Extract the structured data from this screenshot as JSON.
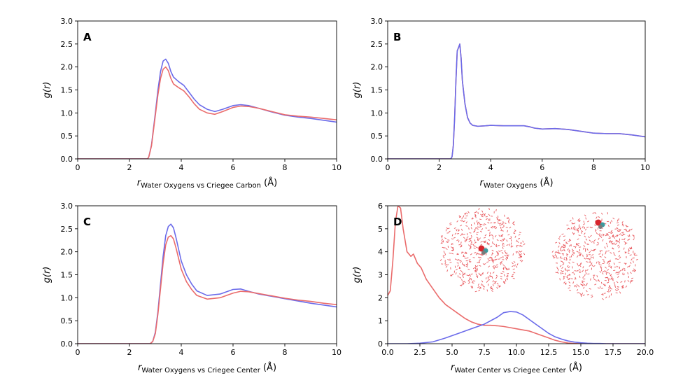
{
  "chart_data": [
    {
      "type": "line",
      "panel_label": "A",
      "xlabel_main": "r",
      "xlabel_sub": "Water Oxygens vs Criegee Carbon",
      "xlabel_unit": "(Å)",
      "ylabel": "g(r)",
      "xlim": [
        0,
        10
      ],
      "ylim": [
        0,
        3.0
      ],
      "xticks": [
        0,
        2,
        4,
        6,
        8,
        10
      ],
      "xtick_labels": [
        "0",
        "2",
        "4",
        "6",
        "8",
        "10"
      ],
      "yticks": [
        0,
        0.5,
        1.0,
        1.5,
        2.0,
        2.5,
        3.0
      ],
      "ytick_labels": [
        "0.0",
        "0.5",
        "1.0",
        "1.5",
        "2.0",
        "2.5",
        "3.0"
      ],
      "series": [
        {
          "name": "blue",
          "color": "#6b6bea",
          "x": [
            0,
            2.7,
            2.75,
            2.85,
            3.0,
            3.1,
            3.2,
            3.3,
            3.4,
            3.5,
            3.6,
            3.7,
            3.9,
            4.1,
            4.3,
            4.5,
            4.7,
            5.0,
            5.3,
            5.6,
            6.0,
            6.3,
            6.6,
            7.0,
            7.5,
            8.0,
            8.5,
            9.0,
            9.5,
            10.0
          ],
          "y": [
            0,
            0,
            0.05,
            0.3,
            1.0,
            1.5,
            1.9,
            2.13,
            2.17,
            2.08,
            1.9,
            1.78,
            1.68,
            1.6,
            1.45,
            1.3,
            1.18,
            1.08,
            1.03,
            1.08,
            1.16,
            1.18,
            1.16,
            1.1,
            1.02,
            0.95,
            0.91,
            0.88,
            0.84,
            0.8
          ]
        },
        {
          "name": "red",
          "color": "#ea6b6b",
          "x": [
            0,
            2.7,
            2.75,
            2.85,
            3.0,
            3.1,
            3.2,
            3.3,
            3.4,
            3.5,
            3.6,
            3.7,
            3.9,
            4.1,
            4.3,
            4.5,
            4.7,
            5.0,
            5.3,
            5.6,
            6.0,
            6.3,
            6.6,
            7.0,
            7.5,
            8.0,
            8.5,
            9.0,
            9.5,
            10.0
          ],
          "y": [
            0,
            0,
            0.05,
            0.28,
            0.95,
            1.4,
            1.75,
            1.95,
            2.0,
            1.92,
            1.75,
            1.63,
            1.55,
            1.48,
            1.35,
            1.2,
            1.08,
            1.0,
            0.97,
            1.03,
            1.12,
            1.15,
            1.14,
            1.1,
            1.03,
            0.96,
            0.93,
            0.91,
            0.88,
            0.85
          ]
        }
      ]
    },
    {
      "type": "line",
      "panel_label": "B",
      "xlabel_main": "r",
      "xlabel_sub": "Water Oxygens",
      "xlabel_unit": "(Å)",
      "ylabel": "g(r)",
      "xlim": [
        0,
        10
      ],
      "ylim": [
        0,
        3.0
      ],
      "xticks": [
        0,
        2,
        4,
        6,
        8,
        10
      ],
      "xtick_labels": [
        "0",
        "2",
        "4",
        "6",
        "8",
        "10"
      ],
      "yticks": [
        0,
        0.5,
        1.0,
        1.5,
        2.0,
        2.5,
        3.0
      ],
      "ytick_labels": [
        "0.0",
        "0.5",
        "1.0",
        "1.5",
        "2.0",
        "2.5",
        "3.0"
      ],
      "series": [
        {
          "name": "red",
          "color": "#ea6b6b",
          "x": [
            0,
            2.45,
            2.5,
            2.55,
            2.6,
            2.65,
            2.7,
            2.75,
            2.8,
            2.85,
            2.9,
            3.0,
            3.1,
            3.2,
            3.3,
            3.5,
            3.8,
            4.0,
            4.5,
            5.0,
            5.3,
            5.5,
            5.7,
            6.0,
            6.5,
            7.0,
            7.5,
            8.0,
            8.5,
            9.0,
            9.5,
            10.0
          ],
          "y": [
            0,
            0,
            0.05,
            0.3,
            0.9,
            1.7,
            2.35,
            2.42,
            2.5,
            2.2,
            1.7,
            1.2,
            0.9,
            0.78,
            0.73,
            0.71,
            0.72,
            0.73,
            0.72,
            0.72,
            0.72,
            0.7,
            0.67,
            0.65,
            0.66,
            0.64,
            0.6,
            0.56,
            0.55,
            0.55,
            0.52,
            0.48
          ]
        },
        {
          "name": "blue",
          "color": "#6b6bea",
          "x": [
            0,
            2.45,
            2.5,
            2.55,
            2.6,
            2.65,
            2.7,
            2.75,
            2.8,
            2.85,
            2.9,
            3.0,
            3.1,
            3.2,
            3.3,
            3.5,
            3.8,
            4.0,
            4.5,
            5.0,
            5.3,
            5.5,
            5.7,
            6.0,
            6.5,
            7.0,
            7.5,
            8.0,
            8.5,
            9.0,
            9.5,
            10.0
          ],
          "y": [
            0,
            0,
            0.05,
            0.3,
            0.9,
            1.7,
            2.35,
            2.42,
            2.5,
            2.2,
            1.7,
            1.2,
            0.9,
            0.78,
            0.73,
            0.71,
            0.72,
            0.73,
            0.72,
            0.72,
            0.72,
            0.7,
            0.67,
            0.65,
            0.66,
            0.64,
            0.6,
            0.56,
            0.55,
            0.55,
            0.52,
            0.48
          ]
        }
      ]
    },
    {
      "type": "line",
      "panel_label": "C",
      "xlabel_main": "r",
      "xlabel_sub": "Water Oxygens vs Criegee Center",
      "xlabel_unit": "(Å)",
      "ylabel": "g(r)",
      "xlim": [
        0,
        10
      ],
      "ylim": [
        0,
        3.0
      ],
      "xticks": [
        0,
        2,
        4,
        6,
        8,
        10
      ],
      "xtick_labels": [
        "0",
        "2",
        "4",
        "6",
        "8",
        "10"
      ],
      "yticks": [
        0,
        0.5,
        1.0,
        1.5,
        2.0,
        2.5,
        3.0
      ],
      "ytick_labels": [
        "0.0",
        "0.5",
        "1.0",
        "1.5",
        "2.0",
        "2.5",
        "3.0"
      ],
      "series": [
        {
          "name": "blue",
          "color": "#6b6bea",
          "x": [
            0,
            2.8,
            2.9,
            3.0,
            3.1,
            3.2,
            3.3,
            3.4,
            3.5,
            3.6,
            3.7,
            3.8,
            3.9,
            4.0,
            4.2,
            4.4,
            4.6,
            5.0,
            5.5,
            6.0,
            6.3,
            6.6,
            7.0,
            7.5,
            8.0,
            8.5,
            9.0,
            9.5,
            10.0
          ],
          "y": [
            0,
            0,
            0.05,
            0.25,
            0.7,
            1.3,
            1.9,
            2.35,
            2.55,
            2.6,
            2.52,
            2.3,
            2.05,
            1.8,
            1.5,
            1.3,
            1.15,
            1.05,
            1.08,
            1.18,
            1.19,
            1.14,
            1.08,
            1.03,
            0.98,
            0.93,
            0.88,
            0.84,
            0.8
          ]
        },
        {
          "name": "red",
          "color": "#ea6b6b",
          "x": [
            0,
            2.8,
            2.9,
            3.0,
            3.1,
            3.2,
            3.3,
            3.4,
            3.5,
            3.6,
            3.7,
            3.8,
            3.9,
            4.0,
            4.2,
            4.4,
            4.6,
            5.0,
            5.5,
            6.0,
            6.3,
            6.6,
            7.0,
            7.5,
            8.0,
            8.5,
            9.0,
            9.5,
            10.0
          ],
          "y": [
            0,
            0,
            0.05,
            0.22,
            0.65,
            1.2,
            1.75,
            2.15,
            2.32,
            2.35,
            2.28,
            2.08,
            1.85,
            1.62,
            1.35,
            1.18,
            1.05,
            0.97,
            1.0,
            1.1,
            1.14,
            1.13,
            1.09,
            1.04,
            0.99,
            0.95,
            0.92,
            0.88,
            0.85
          ]
        }
      ]
    },
    {
      "type": "line",
      "panel_label": "D",
      "xlabel_main": "r",
      "xlabel_sub": "Water Center vs Criegee Center",
      "xlabel_unit": "(Å)",
      "ylabel": "g(r)",
      "xlim": [
        0,
        20
      ],
      "ylim": [
        0,
        6
      ],
      "xticks": [
        0,
        2.5,
        5,
        7.5,
        10,
        12.5,
        15,
        17.5,
        20
      ],
      "xtick_labels": [
        "0.0",
        "2.5",
        "5.0",
        "7.5",
        "10.0",
        "12.5",
        "15.0",
        "17.5",
        "20.0"
      ],
      "yticks": [
        0,
        1,
        2,
        3,
        4,
        5,
        6
      ],
      "ytick_labels": [
        "0",
        "1",
        "2",
        "3",
        "4",
        "5",
        "6"
      ],
      "series": [
        {
          "name": "red",
          "color": "#ea6b6b",
          "x": [
            0,
            0.2,
            0.4,
            0.6,
            0.8,
            1.0,
            1.2,
            1.5,
            1.8,
            2.0,
            2.3,
            2.6,
            3.0,
            3.5,
            4.0,
            4.5,
            5.0,
            5.5,
            6.0,
            6.5,
            7.0,
            7.5,
            8.0,
            8.5,
            9.0,
            9.5,
            10.0,
            10.5,
            11.0,
            11.5,
            12.0,
            12.5,
            13.0,
            13.5,
            14.0,
            14.5,
            15.0,
            16.0,
            17.0,
            18.0,
            20.0
          ],
          "y": [
            2.1,
            2.3,
            3.6,
            5.3,
            6.0,
            5.9,
            5.0,
            4.0,
            3.8,
            3.9,
            3.5,
            3.3,
            2.8,
            2.4,
            2.0,
            1.7,
            1.5,
            1.3,
            1.1,
            0.95,
            0.85,
            0.8,
            0.8,
            0.78,
            0.75,
            0.7,
            0.65,
            0.6,
            0.55,
            0.45,
            0.35,
            0.25,
            0.15,
            0.08,
            0.03,
            0.01,
            0,
            0,
            0,
            0,
            0
          ]
        },
        {
          "name": "blue",
          "color": "#6b6bea",
          "x": [
            0,
            1.5,
            2.5,
            3.5,
            4.5,
            5.5,
            6.5,
            7.5,
            8.5,
            9.0,
            9.5,
            10.0,
            10.5,
            11.0,
            11.5,
            12.0,
            12.5,
            13.0,
            13.5,
            14.0,
            14.5,
            15.0,
            15.5,
            16.0,
            16.5,
            17.0,
            18.0,
            20.0
          ],
          "y": [
            0,
            0,
            0.02,
            0.08,
            0.25,
            0.45,
            0.65,
            0.85,
            1.15,
            1.35,
            1.4,
            1.38,
            1.25,
            1.05,
            0.85,
            0.65,
            0.45,
            0.3,
            0.2,
            0.12,
            0.07,
            0.04,
            0.02,
            0.01,
            0.01,
            0,
            0,
            0
          ]
        }
      ]
    }
  ]
}
